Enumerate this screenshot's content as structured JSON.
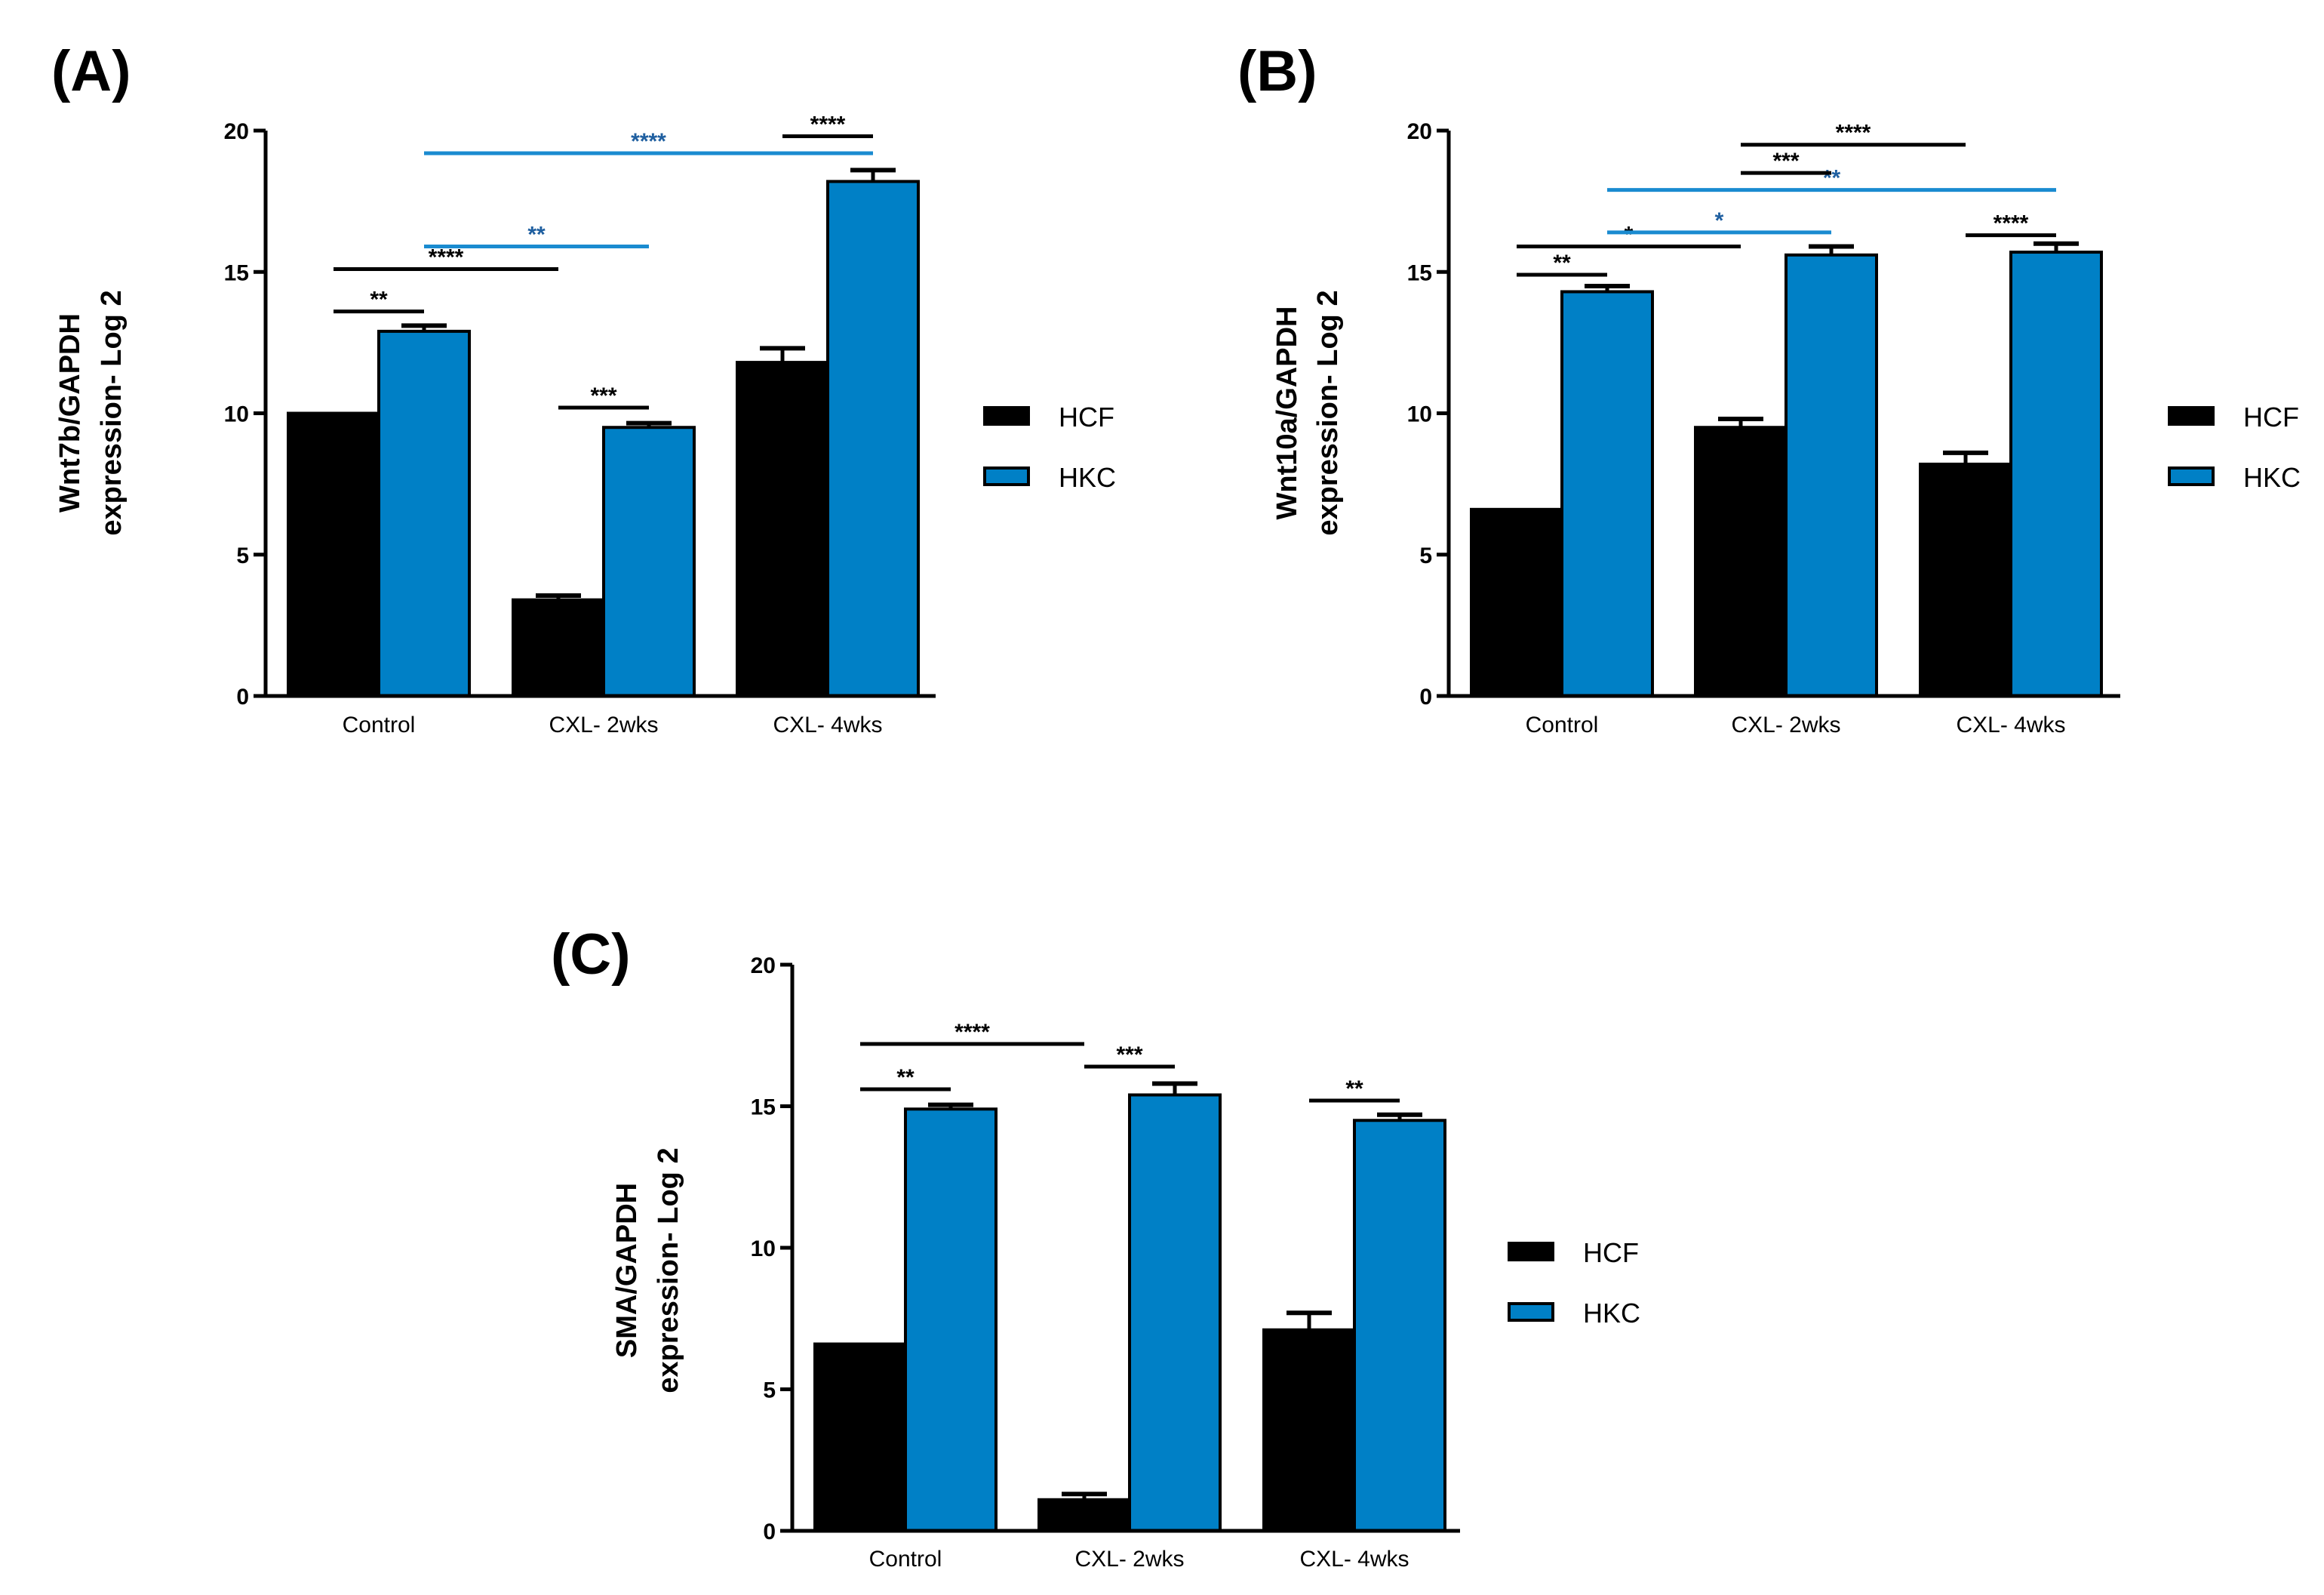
{
  "chart_data": [
    {
      "type": "bar",
      "panel_label": "(A)",
      "ylabel_lines": [
        "Wnt7b/GAPDH",
        "expression-  Log 2"
      ],
      "categories": [
        "Control",
        "CXL- 2wks",
        "CXL- 4wks"
      ],
      "ylim": [
        0,
        20
      ],
      "yticks": [
        "0",
        "5",
        "10",
        "15",
        "20"
      ],
      "series": [
        {
          "name": "HCF",
          "values": [
            10.0,
            3.4,
            11.8
          ],
          "errors": [
            0.0,
            0.15,
            0.5
          ]
        },
        {
          "name": "HKC",
          "values": [
            12.9,
            9.5,
            18.2
          ],
          "errors": [
            0.2,
            0.15,
            0.4
          ]
        }
      ],
      "significance": [
        {
          "label": "**",
          "from": [
            0,
            0
          ],
          "to": [
            0,
            1
          ],
          "y": 13.6,
          "color": "black"
        },
        {
          "label": "****",
          "from": [
            0,
            0
          ],
          "to": [
            1,
            0
          ],
          "y": 15.1,
          "color": "black"
        },
        {
          "label": "**",
          "from": [
            0,
            1
          ],
          "to": [
            1,
            1
          ],
          "y": 15.9,
          "color": "blue"
        },
        {
          "label": "****",
          "from": [
            0,
            1
          ],
          "to": [
            2,
            1
          ],
          "y": 19.2,
          "color": "blue"
        },
        {
          "label": "***",
          "from": [
            1,
            0
          ],
          "to": [
            1,
            1
          ],
          "y": 10.2,
          "color": "black"
        },
        {
          "label": "****",
          "from": [
            2,
            0
          ],
          "to": [
            2,
            1
          ],
          "y": 19.8,
          "color": "black"
        }
      ],
      "legend": [
        "HCF",
        "HKC"
      ]
    },
    {
      "type": "bar",
      "panel_label": "(B)",
      "ylabel_lines": [
        "Wnt10a/GAPDH",
        "expression- Log 2"
      ],
      "categories": [
        "Control",
        "CXL- 2wks",
        "CXL- 4wks"
      ],
      "ylim": [
        0,
        20
      ],
      "yticks": [
        "0",
        "5",
        "10",
        "15",
        "20"
      ],
      "series": [
        {
          "name": "HCF",
          "values": [
            6.6,
            9.5,
            8.2
          ],
          "errors": [
            0.0,
            0.3,
            0.4
          ]
        },
        {
          "name": "HKC",
          "values": [
            14.3,
            15.6,
            15.7
          ],
          "errors": [
            0.2,
            0.3,
            0.3
          ]
        }
      ],
      "significance": [
        {
          "label": "**",
          "from": [
            0,
            0
          ],
          "to": [
            0,
            1
          ],
          "y": 14.9,
          "color": "black"
        },
        {
          "label": "*",
          "from": [
            0,
            0
          ],
          "to": [
            1,
            0
          ],
          "y": 15.9,
          "color": "black"
        },
        {
          "label": "*",
          "from": [
            0,
            1
          ],
          "to": [
            1,
            1
          ],
          "y": 16.4,
          "color": "blue"
        },
        {
          "label": "**",
          "from": [
            0,
            1
          ],
          "to": [
            2,
            1
          ],
          "y": 17.9,
          "color": "blue"
        },
        {
          "label": "***",
          "from": [
            1,
            0
          ],
          "to": [
            1,
            1
          ],
          "y": 18.5,
          "color": "black"
        },
        {
          "label": "****",
          "from": [
            1,
            0
          ],
          "to": [
            2,
            0
          ],
          "y": 19.5,
          "color": "black"
        },
        {
          "label": "****",
          "from": [
            2,
            0
          ],
          "to": [
            2,
            1
          ],
          "y": 16.3,
          "color": "black"
        }
      ],
      "legend": [
        "HCF",
        "HKC"
      ]
    },
    {
      "type": "bar",
      "panel_label": "(C)",
      "ylabel_lines": [
        "SMA/GAPDH",
        "expression- Log 2"
      ],
      "categories": [
        "Control",
        "CXL- 2wks",
        "CXL- 4wks"
      ],
      "ylim": [
        0,
        20
      ],
      "yticks": [
        "0",
        "5",
        "10",
        "15",
        "20"
      ],
      "series": [
        {
          "name": "HCF",
          "values": [
            6.6,
            1.1,
            7.1
          ],
          "errors": [
            0.0,
            0.2,
            0.6
          ]
        },
        {
          "name": "HKC",
          "values": [
            14.9,
            15.4,
            14.5
          ],
          "errors": [
            0.15,
            0.4,
            0.2
          ]
        }
      ],
      "significance": [
        {
          "label": "**",
          "from": [
            0,
            0
          ],
          "to": [
            0,
            1
          ],
          "y": 15.6,
          "color": "black"
        },
        {
          "label": "****",
          "from": [
            0,
            0
          ],
          "to": [
            1,
            0
          ],
          "y": 17.2,
          "color": "black"
        },
        {
          "label": "***",
          "from": [
            1,
            0
          ],
          "to": [
            1,
            1
          ],
          "y": 16.4,
          "color": "black"
        },
        {
          "label": "**",
          "from": [
            2,
            0
          ],
          "to": [
            2,
            1
          ],
          "y": 15.2,
          "color": "black"
        }
      ],
      "legend": [
        "HCF",
        "HKC"
      ]
    }
  ],
  "colors": {
    "HCF": "#000000",
    "HKC": "#0080c6",
    "black": "#000000",
    "blue": "#1a8bd0",
    "blue_text": "#1f5fa0"
  }
}
